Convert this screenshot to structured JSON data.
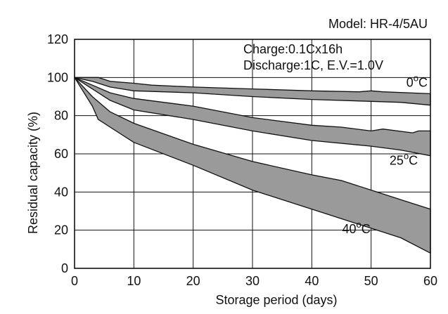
{
  "chart_data": {
    "type": "area",
    "title": "",
    "model_label": "Model: HR-4/5AU",
    "conditions": [
      "Charge:0.1Cx16h",
      "Discharge:1C, E.V.=1.0V"
    ],
    "xlabel": "Storage period (days)",
    "ylabel": "Residual capacity (%)",
    "xlim": [
      0,
      60
    ],
    "ylim": [
      0,
      120
    ],
    "xticks": [
      0,
      10,
      20,
      30,
      40,
      50,
      60
    ],
    "yticks": [
      0,
      20,
      40,
      60,
      80,
      100,
      120
    ],
    "grid": true,
    "series": [
      {
        "name": "0°C",
        "temp_value": "0",
        "upper": [
          [
            0,
            100
          ],
          [
            4,
            100
          ],
          [
            6,
            98
          ],
          [
            10,
            97
          ],
          [
            13,
            96
          ],
          [
            20,
            95
          ],
          [
            30,
            94
          ],
          [
            40,
            93
          ],
          [
            48,
            92.5
          ],
          [
            50,
            93
          ],
          [
            52,
            92.5
          ],
          [
            60,
            91.5
          ]
        ],
        "lower": [
          [
            0,
            100
          ],
          [
            3,
            98
          ],
          [
            6,
            95
          ],
          [
            10,
            93
          ],
          [
            20,
            92
          ],
          [
            30,
            90
          ],
          [
            40,
            88.5
          ],
          [
            50,
            87.5
          ],
          [
            55,
            87
          ],
          [
            60,
            85.5
          ]
        ]
      },
      {
        "name": "25°C",
        "temp_value": "25",
        "upper": [
          [
            0,
            100
          ],
          [
            3,
            96
          ],
          [
            6,
            92
          ],
          [
            10,
            89
          ],
          [
            20,
            85
          ],
          [
            30,
            79
          ],
          [
            40,
            75
          ],
          [
            45,
            74
          ],
          [
            50,
            72
          ],
          [
            52,
            73
          ],
          [
            57,
            71
          ],
          [
            58,
            72
          ],
          [
            60,
            72
          ]
        ],
        "lower": [
          [
            0,
            100
          ],
          [
            3,
            94
          ],
          [
            6,
            88
          ],
          [
            10,
            83
          ],
          [
            20,
            78
          ],
          [
            30,
            72
          ],
          [
            40,
            67
          ],
          [
            50,
            64
          ],
          [
            55,
            62
          ],
          [
            60,
            59
          ]
        ]
      },
      {
        "name": "40°C",
        "temp_value": "40",
        "upper": [
          [
            0,
            100
          ],
          [
            3,
            90
          ],
          [
            6,
            82
          ],
          [
            10,
            76
          ],
          [
            20,
            65
          ],
          [
            30,
            56
          ],
          [
            40,
            49
          ],
          [
            45,
            46
          ],
          [
            50,
            41
          ],
          [
            55,
            36
          ],
          [
            60,
            31
          ]
        ],
        "lower": [
          [
            0,
            100
          ],
          [
            3,
            85
          ],
          [
            4,
            78
          ],
          [
            6,
            74
          ],
          [
            10,
            66
          ],
          [
            20,
            54
          ],
          [
            30,
            41
          ],
          [
            40,
            31
          ],
          [
            50,
            21
          ],
          [
            55,
            16
          ],
          [
            60,
            8
          ]
        ]
      }
    ]
  }
}
